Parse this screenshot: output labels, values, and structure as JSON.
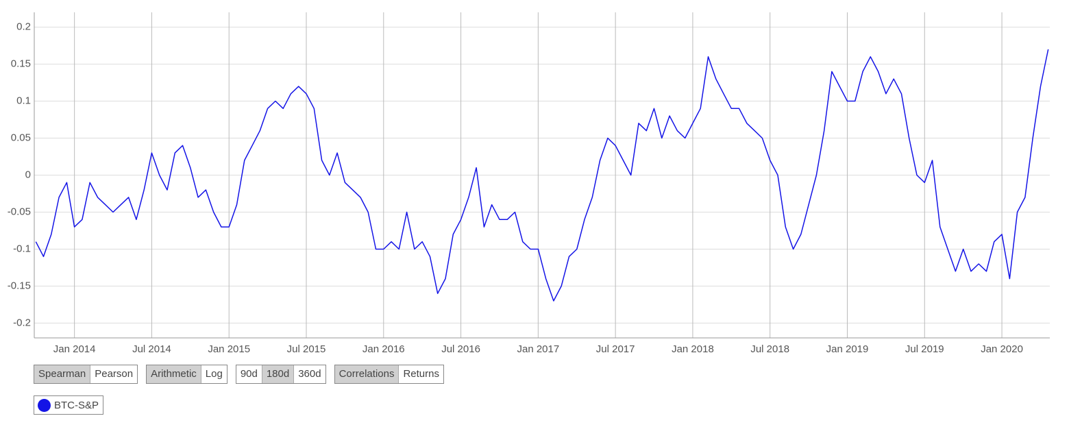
{
  "chart_data": {
    "type": "line",
    "x": [
      2013.75,
      2013.8,
      2013.85,
      2013.9,
      2013.95,
      2014.0,
      2014.05,
      2014.1,
      2014.15,
      2014.2,
      2014.25,
      2014.3,
      2014.35,
      2014.4,
      2014.45,
      2014.5,
      2014.55,
      2014.6,
      2014.65,
      2014.7,
      2014.75,
      2014.8,
      2014.85,
      2014.9,
      2014.95,
      2015.0,
      2015.05,
      2015.1,
      2015.15,
      2015.2,
      2015.25,
      2015.3,
      2015.35,
      2015.4,
      2015.45,
      2015.5,
      2015.55,
      2015.6,
      2015.65,
      2015.7,
      2015.75,
      2015.8,
      2015.85,
      2015.9,
      2015.95,
      2016.0,
      2016.05,
      2016.1,
      2016.15,
      2016.2,
      2016.25,
      2016.3,
      2016.35,
      2016.4,
      2016.45,
      2016.5,
      2016.55,
      2016.6,
      2016.65,
      2016.7,
      2016.75,
      2016.8,
      2016.85,
      2016.9,
      2016.95,
      2017.0,
      2017.05,
      2017.1,
      2017.15,
      2017.2,
      2017.25,
      2017.3,
      2017.35,
      2017.4,
      2017.45,
      2017.5,
      2017.55,
      2017.6,
      2017.65,
      2017.7,
      2017.75,
      2017.8,
      2017.85,
      2017.9,
      2017.95,
      2018.0,
      2018.05,
      2018.1,
      2018.15,
      2018.2,
      2018.25,
      2018.3,
      2018.35,
      2018.4,
      2018.45,
      2018.5,
      2018.55,
      2018.6,
      2018.65,
      2018.7,
      2018.75,
      2018.8,
      2018.85,
      2018.9,
      2018.95,
      2019.0,
      2019.05,
      2019.1,
      2019.15,
      2019.2,
      2019.25,
      2019.3,
      2019.35,
      2019.4,
      2019.45,
      2019.5,
      2019.55,
      2019.6,
      2019.65,
      2019.7,
      2019.75,
      2019.8,
      2019.85,
      2019.9,
      2019.95,
      2020.0,
      2020.05,
      2020.1,
      2020.15,
      2020.2,
      2020.25,
      2020.3
    ],
    "series": [
      {
        "name": "BTC-S&P",
        "color": "#1414e6",
        "values": [
          -0.09,
          -0.11,
          -0.08,
          -0.03,
          -0.01,
          -0.07,
          -0.06,
          -0.01,
          -0.03,
          -0.04,
          -0.05,
          -0.04,
          -0.03,
          -0.06,
          -0.02,
          0.03,
          0.0,
          -0.02,
          0.03,
          0.04,
          0.01,
          -0.03,
          -0.02,
          -0.05,
          -0.07,
          -0.07,
          -0.04,
          0.02,
          0.04,
          0.06,
          0.09,
          0.1,
          0.09,
          0.11,
          0.12,
          0.11,
          0.09,
          0.02,
          0.0,
          0.03,
          -0.01,
          -0.02,
          -0.03,
          -0.05,
          -0.1,
          -0.1,
          -0.09,
          -0.1,
          -0.05,
          -0.1,
          -0.09,
          -0.11,
          -0.16,
          -0.14,
          -0.08,
          -0.06,
          -0.03,
          0.01,
          -0.07,
          -0.04,
          -0.06,
          -0.06,
          -0.05,
          -0.09,
          -0.1,
          -0.1,
          -0.14,
          -0.17,
          -0.15,
          -0.11,
          -0.1,
          -0.06,
          -0.03,
          0.02,
          0.05,
          0.04,
          0.02,
          0.0,
          0.07,
          0.06,
          0.09,
          0.05,
          0.08,
          0.06,
          0.05,
          0.07,
          0.09,
          0.16,
          0.13,
          0.11,
          0.09,
          0.09,
          0.07,
          0.06,
          0.05,
          0.02,
          0.0,
          -0.07,
          -0.1,
          -0.08,
          -0.04,
          0.0,
          0.06,
          0.14,
          0.12,
          0.1,
          0.1,
          0.14,
          0.16,
          0.14,
          0.11,
          0.13,
          0.11,
          0.05,
          0.0,
          -0.01,
          0.02,
          -0.07,
          -0.1,
          -0.13,
          -0.1,
          -0.13,
          -0.12,
          -0.13,
          -0.09,
          -0.08,
          -0.14,
          -0.05,
          -0.03,
          0.05,
          0.12,
          0.17
        ]
      }
    ],
    "xlim": [
      2013.74,
      2020.31
    ],
    "xticks": [
      {
        "value": 2014.0,
        "label": "Jan 2014"
      },
      {
        "value": 2014.5,
        "label": "Jul 2014"
      },
      {
        "value": 2015.0,
        "label": "Jan 2015"
      },
      {
        "value": 2015.5,
        "label": "Jul 2015"
      },
      {
        "value": 2016.0,
        "label": "Jan 2016"
      },
      {
        "value": 2016.5,
        "label": "Jul 2016"
      },
      {
        "value": 2017.0,
        "label": "Jan 2017"
      },
      {
        "value": 2017.5,
        "label": "Jul 2017"
      },
      {
        "value": 2018.0,
        "label": "Jan 2018"
      },
      {
        "value": 2018.5,
        "label": "Jul 2018"
      },
      {
        "value": 2019.0,
        "label": "Jan 2019"
      },
      {
        "value": 2019.5,
        "label": "Jul 2019"
      },
      {
        "value": 2020.0,
        "label": "Jan 2020"
      }
    ],
    "ylim": [
      -0.22,
      0.22
    ],
    "yticks": [
      0.2,
      0.15,
      0.1,
      0.05,
      0,
      -0.05,
      -0.1,
      -0.15,
      -0.2
    ],
    "grid": true,
    "legend": "bottom-left"
  },
  "controls": [
    {
      "options": [
        "Spearman",
        "Pearson"
      ],
      "active": 0
    },
    {
      "options": [
        "Arithmetic",
        "Log"
      ],
      "active": 0
    },
    {
      "options": [
        "90d",
        "180d",
        "360d"
      ],
      "active": 1
    },
    {
      "options": [
        "Correlations",
        "Returns"
      ],
      "active": 0
    }
  ]
}
